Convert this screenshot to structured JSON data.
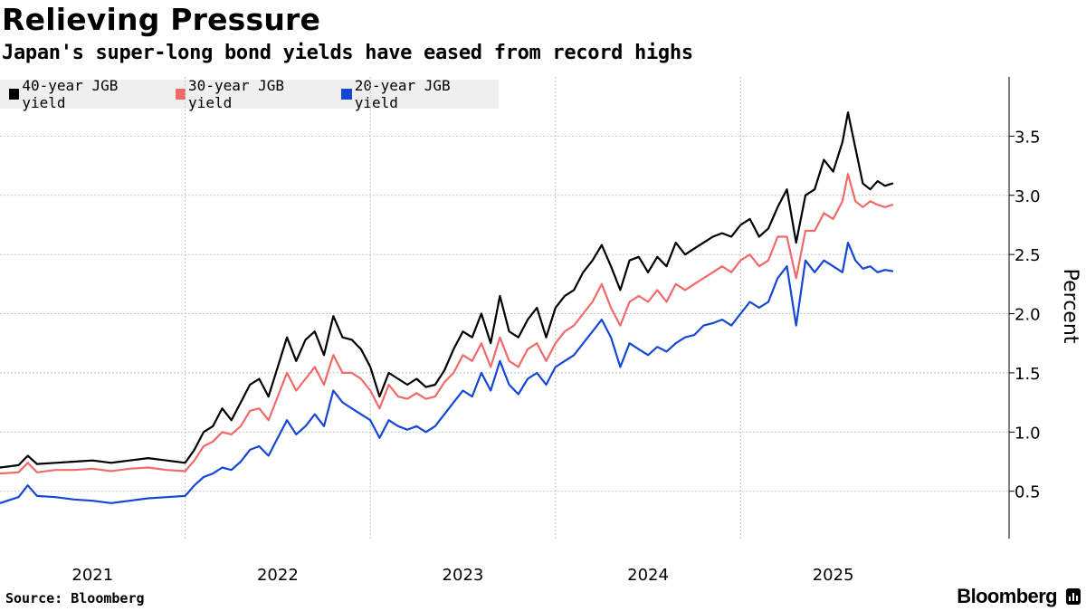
{
  "header": {
    "title": "Relieving Pressure",
    "subtitle": "Japan's super-long bond yields have eased from record highs"
  },
  "footer": {
    "source": "Source: Bloomberg",
    "brand": "Bloomberg"
  },
  "chart_data": {
    "type": "line",
    "title": "Relieving Pressure",
    "subtitle": "Japan's super-long bond yields have eased from record highs",
    "xlabel": "",
    "ylabel": "Percent",
    "ylim": [
      0.1,
      4.0
    ],
    "yticks": [
      0.5,
      1.0,
      1.5,
      2.0,
      2.5,
      3.0,
      3.5
    ],
    "ytick_labels": [
      "0.5",
      "1.0",
      "1.5",
      "2.0",
      "2.5",
      "3.0",
      "3.5"
    ],
    "xlim": [
      2020.5,
      2025.95
    ],
    "xticks": [
      2021,
      2022,
      2023,
      2024,
      2025
    ],
    "xtick_labels": [
      "2021",
      "2022",
      "2023",
      "2024",
      "2025"
    ],
    "year_boundaries": [
      2021.5,
      2022.5,
      2023.5,
      2024.5
    ],
    "grid": true,
    "legend_position": "top-left",
    "series": [
      {
        "name": "40-year JGB yield",
        "color": "#000000",
        "x": [
          2020.5,
          2020.6,
          2020.65,
          2020.7,
          2020.8,
          2020.9,
          2021.0,
          2021.1,
          2021.2,
          2021.3,
          2021.4,
          2021.5,
          2021.55,
          2021.6,
          2021.65,
          2021.7,
          2021.75,
          2021.8,
          2021.85,
          2021.9,
          2021.95,
          2022.0,
          2022.05,
          2022.1,
          2022.15,
          2022.2,
          2022.25,
          2022.3,
          2022.35,
          2022.4,
          2022.45,
          2022.5,
          2022.55,
          2022.6,
          2022.65,
          2022.7,
          2022.75,
          2022.8,
          2022.85,
          2022.9,
          2022.95,
          2023.0,
          2023.05,
          2023.1,
          2023.15,
          2023.2,
          2023.25,
          2023.3,
          2023.35,
          2023.4,
          2023.45,
          2023.5,
          2023.55,
          2023.6,
          2023.65,
          2023.7,
          2023.75,
          2023.8,
          2023.85,
          2023.9,
          2023.95,
          2024.0,
          2024.05,
          2024.1,
          2024.15,
          2024.2,
          2024.25,
          2024.3,
          2024.35,
          2024.4,
          2024.45,
          2024.5,
          2024.55,
          2024.6,
          2024.65,
          2024.7,
          2024.75,
          2024.8,
          2024.85,
          2024.9,
          2024.95,
          2025.0,
          2025.05,
          2025.08,
          2025.12,
          2025.16,
          2025.2,
          2025.24,
          2025.28,
          2025.32
        ],
        "values": [
          0.7,
          0.72,
          0.8,
          0.73,
          0.74,
          0.75,
          0.76,
          0.74,
          0.76,
          0.78,
          0.76,
          0.74,
          0.85,
          1.0,
          1.05,
          1.2,
          1.1,
          1.25,
          1.4,
          1.45,
          1.3,
          1.55,
          1.8,
          1.6,
          1.78,
          1.85,
          1.65,
          1.98,
          1.8,
          1.78,
          1.7,
          1.55,
          1.3,
          1.5,
          1.45,
          1.4,
          1.45,
          1.38,
          1.4,
          1.52,
          1.7,
          1.85,
          1.8,
          2.0,
          1.75,
          2.15,
          1.85,
          1.8,
          1.95,
          2.05,
          1.8,
          2.05,
          2.15,
          2.2,
          2.35,
          2.45,
          2.58,
          2.4,
          2.2,
          2.45,
          2.48,
          2.35,
          2.48,
          2.4,
          2.6,
          2.5,
          2.55,
          2.6,
          2.65,
          2.68,
          2.65,
          2.75,
          2.8,
          2.65,
          2.72,
          2.9,
          3.05,
          2.6,
          3.0,
          3.05,
          3.3,
          3.2,
          3.45,
          3.7,
          3.4,
          3.1,
          3.05,
          3.12,
          3.08,
          3.1
        ]
      },
      {
        "name": "30-year JGB yield",
        "color": "#f06a6a",
        "x": [
          2020.5,
          2020.6,
          2020.65,
          2020.7,
          2020.8,
          2020.9,
          2021.0,
          2021.1,
          2021.2,
          2021.3,
          2021.4,
          2021.5,
          2021.55,
          2021.6,
          2021.65,
          2021.7,
          2021.75,
          2021.8,
          2021.85,
          2021.9,
          2021.95,
          2022.0,
          2022.05,
          2022.1,
          2022.15,
          2022.2,
          2022.25,
          2022.3,
          2022.35,
          2022.4,
          2022.45,
          2022.5,
          2022.55,
          2022.6,
          2022.65,
          2022.7,
          2022.75,
          2022.8,
          2022.85,
          2022.9,
          2022.95,
          2023.0,
          2023.05,
          2023.1,
          2023.15,
          2023.2,
          2023.25,
          2023.3,
          2023.35,
          2023.4,
          2023.45,
          2023.5,
          2023.55,
          2023.6,
          2023.65,
          2023.7,
          2023.75,
          2023.8,
          2023.85,
          2023.9,
          2023.95,
          2024.0,
          2024.05,
          2024.1,
          2024.15,
          2024.2,
          2024.25,
          2024.3,
          2024.35,
          2024.4,
          2024.45,
          2024.5,
          2024.55,
          2024.6,
          2024.65,
          2024.7,
          2024.75,
          2024.8,
          2024.85,
          2024.9,
          2024.95,
          2025.0,
          2025.05,
          2025.08,
          2025.12,
          2025.16,
          2025.2,
          2025.24,
          2025.28,
          2025.32
        ],
        "values": [
          0.65,
          0.66,
          0.74,
          0.66,
          0.68,
          0.68,
          0.69,
          0.67,
          0.69,
          0.7,
          0.68,
          0.67,
          0.76,
          0.88,
          0.92,
          1.0,
          0.98,
          1.05,
          1.18,
          1.2,
          1.1,
          1.3,
          1.5,
          1.35,
          1.45,
          1.55,
          1.4,
          1.65,
          1.5,
          1.5,
          1.45,
          1.35,
          1.2,
          1.4,
          1.3,
          1.28,
          1.33,
          1.28,
          1.3,
          1.42,
          1.5,
          1.65,
          1.6,
          1.75,
          1.55,
          1.8,
          1.6,
          1.55,
          1.7,
          1.75,
          1.6,
          1.75,
          1.85,
          1.9,
          2.0,
          2.1,
          2.25,
          2.05,
          1.9,
          2.1,
          2.15,
          2.1,
          2.2,
          2.1,
          2.25,
          2.2,
          2.25,
          2.3,
          2.35,
          2.4,
          2.35,
          2.45,
          2.5,
          2.4,
          2.45,
          2.65,
          2.65,
          2.3,
          2.7,
          2.7,
          2.85,
          2.8,
          2.95,
          3.18,
          2.95,
          2.9,
          2.95,
          2.92,
          2.9,
          2.92
        ]
      },
      {
        "name": "20-year JGB yield",
        "color": "#1547d6",
        "x": [
          2020.5,
          2020.6,
          2020.65,
          2020.7,
          2020.8,
          2020.9,
          2021.0,
          2021.1,
          2021.2,
          2021.3,
          2021.4,
          2021.5,
          2021.55,
          2021.6,
          2021.65,
          2021.7,
          2021.75,
          2021.8,
          2021.85,
          2021.9,
          2021.95,
          2022.0,
          2022.05,
          2022.1,
          2022.15,
          2022.2,
          2022.25,
          2022.3,
          2022.35,
          2022.4,
          2022.45,
          2022.5,
          2022.55,
          2022.6,
          2022.65,
          2022.7,
          2022.75,
          2022.8,
          2022.85,
          2022.9,
          2022.95,
          2023.0,
          2023.05,
          2023.1,
          2023.15,
          2023.2,
          2023.25,
          2023.3,
          2023.35,
          2023.4,
          2023.45,
          2023.5,
          2023.55,
          2023.6,
          2023.65,
          2023.7,
          2023.75,
          2023.8,
          2023.85,
          2023.9,
          2023.95,
          2024.0,
          2024.05,
          2024.1,
          2024.15,
          2024.2,
          2024.25,
          2024.3,
          2024.35,
          2024.4,
          2024.45,
          2024.5,
          2024.55,
          2024.6,
          2024.65,
          2024.7,
          2024.75,
          2024.8,
          2024.85,
          2024.9,
          2024.95,
          2025.0,
          2025.05,
          2025.08,
          2025.12,
          2025.16,
          2025.2,
          2025.24,
          2025.28,
          2025.32
        ],
        "values": [
          0.4,
          0.45,
          0.55,
          0.46,
          0.45,
          0.43,
          0.42,
          0.4,
          0.42,
          0.44,
          0.45,
          0.46,
          0.55,
          0.62,
          0.65,
          0.7,
          0.68,
          0.75,
          0.85,
          0.88,
          0.8,
          0.95,
          1.1,
          0.98,
          1.05,
          1.15,
          1.05,
          1.35,
          1.25,
          1.2,
          1.15,
          1.1,
          0.95,
          1.1,
          1.05,
          1.02,
          1.05,
          1.0,
          1.05,
          1.15,
          1.25,
          1.35,
          1.3,
          1.5,
          1.35,
          1.6,
          1.4,
          1.32,
          1.45,
          1.5,
          1.4,
          1.55,
          1.6,
          1.65,
          1.75,
          1.85,
          1.95,
          1.8,
          1.55,
          1.75,
          1.7,
          1.65,
          1.72,
          1.68,
          1.75,
          1.8,
          1.82,
          1.9,
          1.92,
          1.95,
          1.9,
          2.0,
          2.1,
          2.05,
          2.1,
          2.3,
          2.4,
          1.9,
          2.45,
          2.35,
          2.45,
          2.4,
          2.35,
          2.6,
          2.45,
          2.38,
          2.4,
          2.35,
          2.37,
          2.36
        ]
      }
    ]
  }
}
